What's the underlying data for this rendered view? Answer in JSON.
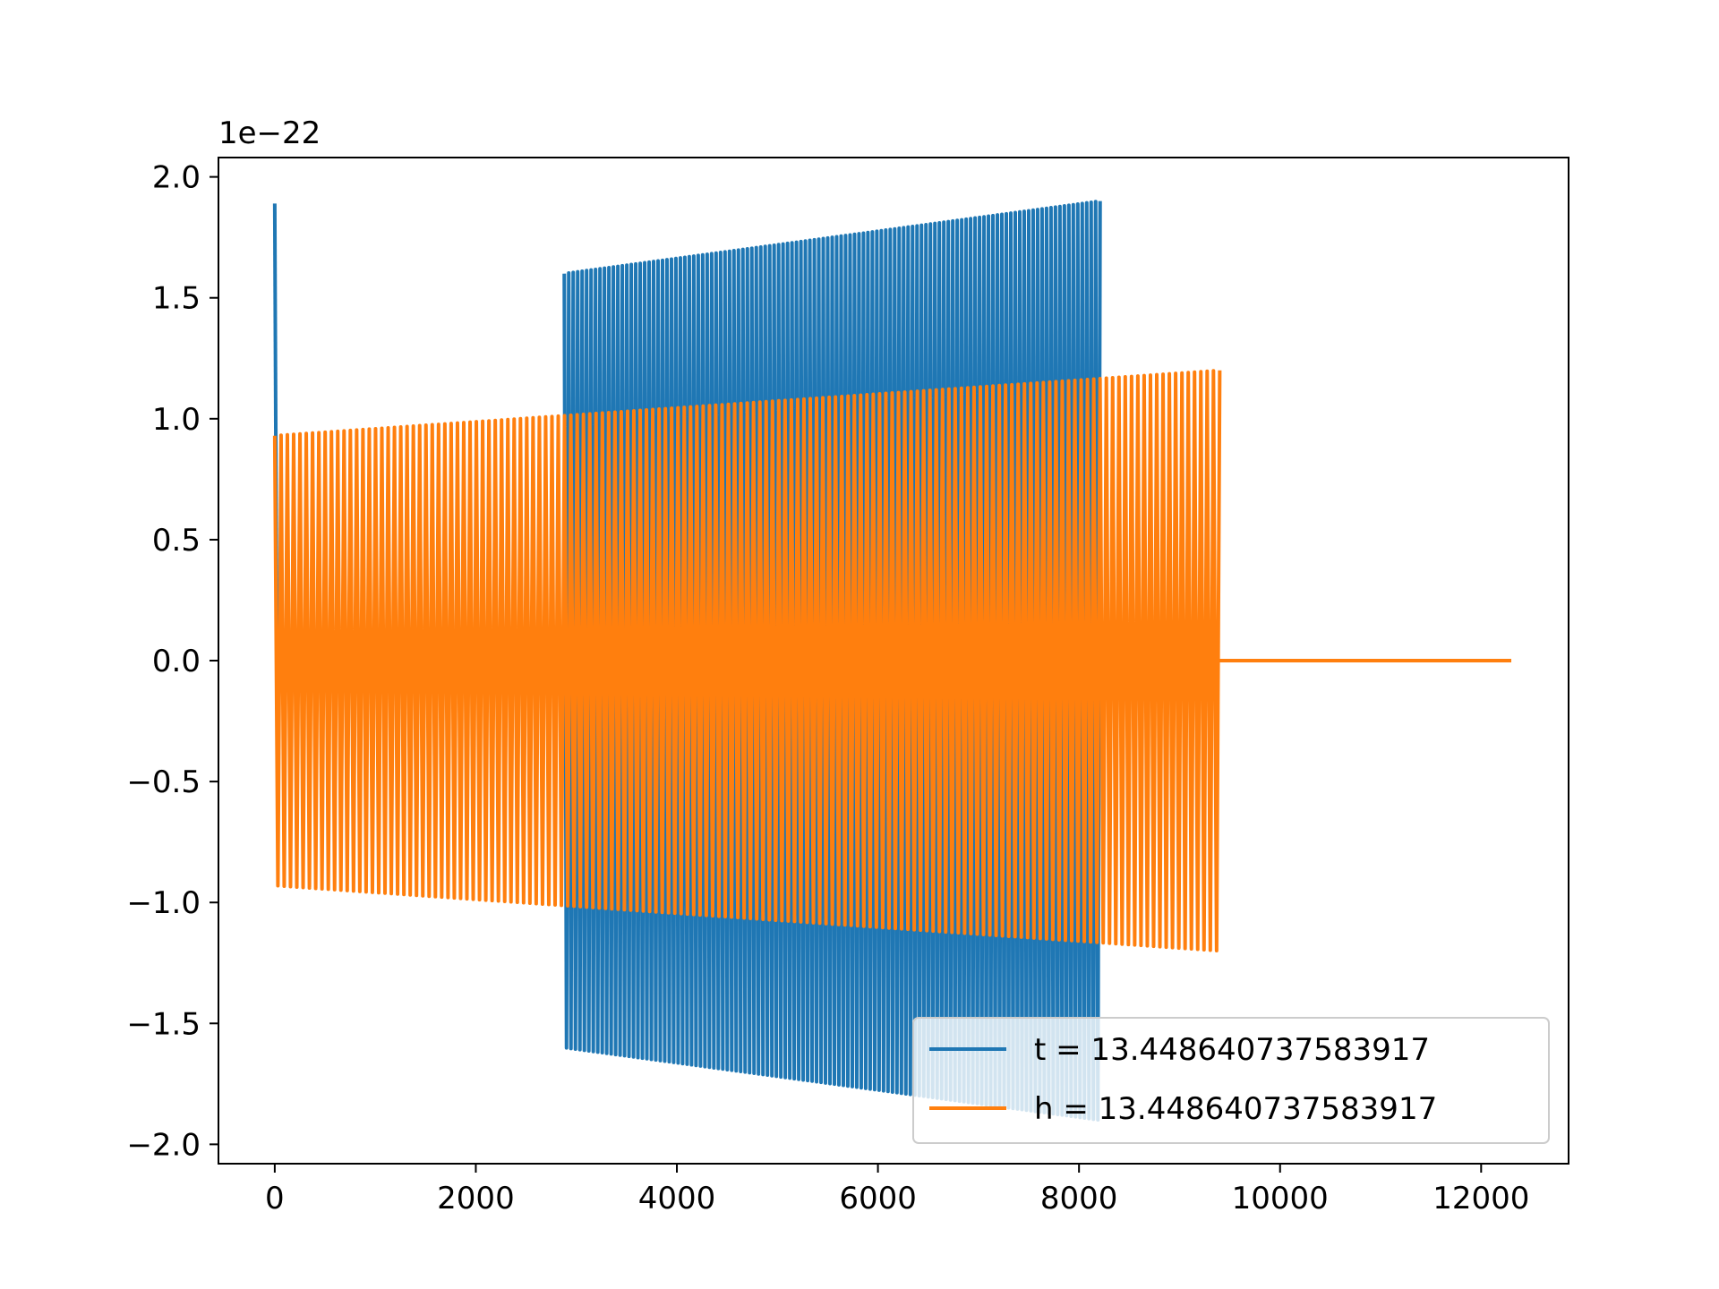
{
  "chart_data": {
    "type": "line",
    "title": "",
    "xlabel": "",
    "ylabel": "",
    "y_offset_label": "1e−22",
    "xlim": [
      -560,
      12870
    ],
    "ylim": [
      -2.08,
      2.08
    ],
    "x_ticks": [
      0,
      2000,
      4000,
      6000,
      8000,
      10000,
      12000
    ],
    "x_tick_labels": [
      "0",
      "2000",
      "4000",
      "6000",
      "8000",
      "10000",
      "12000"
    ],
    "y_ticks": [
      2.0,
      1.5,
      1.0,
      0.5,
      0.0,
      -0.5,
      -1.0,
      -1.5,
      -2.0
    ],
    "y_tick_labels": [
      "2.0",
      "1.5",
      "1.0",
      "0.5",
      "0.0",
      "−0.5",
      "−1.0",
      "−1.5",
      "−2.0"
    ],
    "grid": false,
    "legend_position": "lower right",
    "series": [
      {
        "name": "t = 13.448640737583917",
        "color": "#1f77b4",
        "description_points": [
          {
            "x": 0,
            "y": 1.89
          },
          {
            "x": 20,
            "y": 0.1
          },
          {
            "x": 2900,
            "y": 1.6
          },
          {
            "x": 8200,
            "y": 1.9
          },
          {
            "x": 2900,
            "y": -1.6
          },
          {
            "x": 8200,
            "y": -1.9
          }
        ],
        "spike": {
          "x_start": 0,
          "x_end": 20,
          "peak": 1.89
        },
        "burst": {
          "x_start": 2880,
          "x_end": 8210,
          "amp_start": 1.6,
          "amp_end": 1.9,
          "cycles": 120
        }
      },
      {
        "name": "h = 13.448640737583917",
        "color": "#ff7f0e",
        "burst": {
          "x_start": 0,
          "x_end": 9400,
          "amp_start": 0.93,
          "amp_end": 1.2,
          "cycles": 150
        },
        "tail": {
          "x_start": 9400,
          "x_end": 12300,
          "y": 0.0
        }
      }
    ]
  }
}
